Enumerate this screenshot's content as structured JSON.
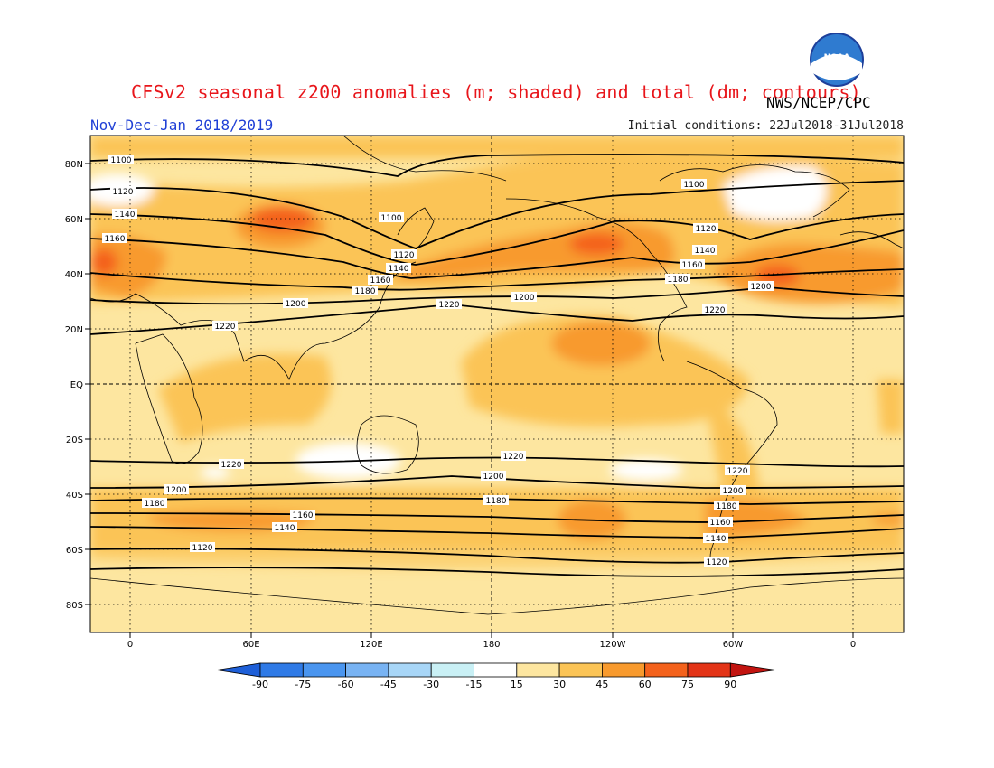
{
  "title": "CFSv2 seasonal z200 anomalies (m; shaded) and total (dm; contours)",
  "period": "Nov-Dec-Jan 2018/2019",
  "initial_conditions": "Initial conditions: 22Jul2018-31Jul2018",
  "agency": "NWS/NCEP/CPC",
  "logo_text": "NOAA",
  "axes": {
    "lat_labels": [
      "80N",
      "60N",
      "40N",
      "20N",
      "EQ",
      "20S",
      "40S",
      "60S",
      "80S"
    ],
    "lon_labels": [
      "0",
      "60E",
      "120E",
      "180",
      "120W",
      "60W",
      "0"
    ]
  },
  "colorbar": {
    "levels": [
      "-90",
      "-75",
      "-60",
      "-45",
      "-30",
      "-15",
      "15",
      "30",
      "45",
      "60",
      "75",
      "90"
    ],
    "colors": [
      "#1e5fd8",
      "#2f7ae6",
      "#4a95ef",
      "#78b3f3",
      "#a8d6f7",
      "#c9f0f5",
      "#ffffff",
      "#fde6a0",
      "#fbc456",
      "#f89a2d",
      "#f4621c",
      "#e33417",
      "#c21410"
    ]
  },
  "contours": [
    {
      "label": "1100"
    },
    {
      "label": "1120"
    },
    {
      "label": "1140"
    },
    {
      "label": "1160"
    },
    {
      "label": "1180"
    },
    {
      "label": "1200"
    },
    {
      "label": "1220"
    }
  ],
  "contour_labels": [
    "1100",
    "1120",
    "1140",
    "1160",
    "1100",
    "1120",
    "1140",
    "1160",
    "1180",
    "1200",
    "1220",
    "1200",
    "1220",
    "1100",
    "1120",
    "1140",
    "1160",
    "1180",
    "1200",
    "1220",
    "1220",
    "1200",
    "1180",
    "1160",
    "1140",
    "1120",
    "1220",
    "1200",
    "1180",
    "1160",
    "1140",
    "1120",
    "1220",
    "1200",
    "1180"
  ]
}
